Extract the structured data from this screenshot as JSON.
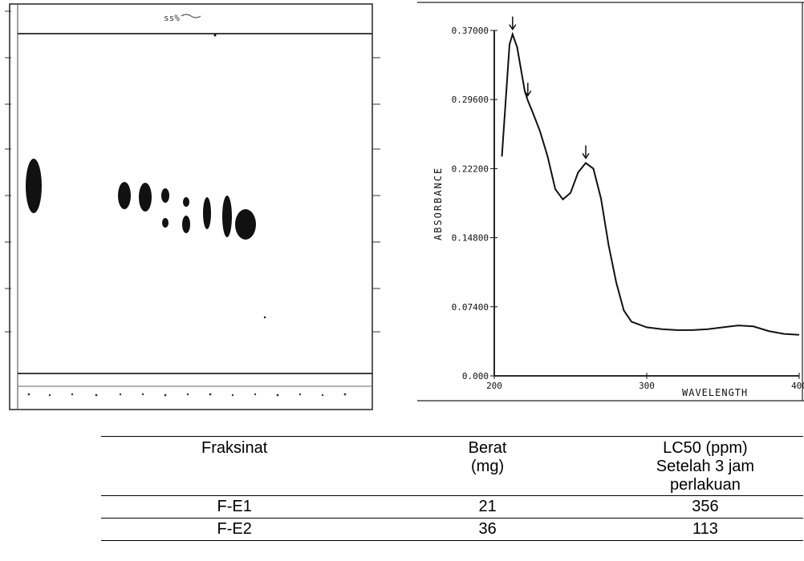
{
  "tlc_plate": {
    "top_mark": "ss%"
  },
  "uv_spectrum": {
    "ylabel": "ABSORBANCE",
    "xlabel": "WAVELENGTH",
    "y_ticks": [
      "0.37000",
      "0.29600",
      "0.22200",
      "0.14800",
      "0.07400",
      "0.000"
    ],
    "x_ticks": [
      "200",
      "300",
      "400"
    ],
    "peak_arrows": 3
  },
  "chart_data": {
    "type": "line",
    "title": "",
    "xlabel": "WAVELENGTH",
    "ylabel": "ABSORBANCE",
    "xlim": [
      200,
      400
    ],
    "ylim": [
      0,
      0.37
    ],
    "x": [
      205,
      210,
      212,
      215,
      220,
      222,
      225,
      230,
      235,
      240,
      245,
      250,
      255,
      260,
      265,
      270,
      275,
      280,
      285,
      290,
      300,
      310,
      320,
      330,
      340,
      350,
      360,
      370,
      380,
      390,
      400
    ],
    "series": [
      {
        "values": [
          0.235,
          0.355,
          0.366,
          0.352,
          0.305,
          0.295,
          0.283,
          0.262,
          0.235,
          0.2,
          0.189,
          0.196,
          0.218,
          0.228,
          0.222,
          0.19,
          0.14,
          0.1,
          0.07,
          0.058,
          0.052,
          0.05,
          0.049,
          0.049,
          0.05,
          0.052,
          0.054,
          0.053,
          0.048,
          0.045,
          0.044
        ]
      }
    ]
  },
  "table": {
    "headers": [
      [
        "Fraksinat"
      ],
      [
        "Berat",
        "(mg)"
      ],
      [
        "LC50 (ppm)",
        "Setelah 3 jam",
        "perlakuan"
      ]
    ],
    "rows": [
      [
        "F-E1",
        "21",
        "356"
      ],
      [
        "F-E2",
        "36",
        "113"
      ]
    ]
  }
}
